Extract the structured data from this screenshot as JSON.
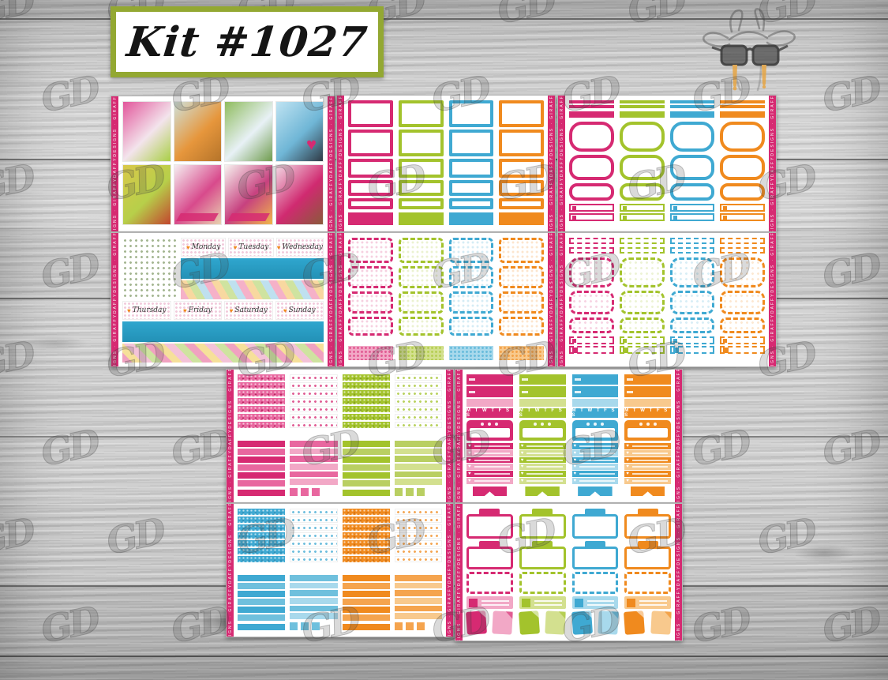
{
  "title": {
    "text": "Kit #1027"
  },
  "brand": {
    "watermark_glyph": "GD",
    "edge_text": "giraffydaffydesigns",
    "logo": "giraffe-with-glasses"
  },
  "palette": {
    "pink": "#D62A72",
    "pinkDark": "#AF1553",
    "pinkMid": "#E8679F",
    "pinkLight": "#F2A8C6",
    "green": "#A3C32C",
    "greenDark": "#7E9A1E",
    "greenLight": "#D3E08F",
    "blue": "#3FA9D2",
    "blueDark": "#2B89B0",
    "blueLight": "#A8D9EC",
    "orange": "#F08A1E",
    "orangeDark": "#C96A10",
    "orangeLight": "#F8C98D",
    "cyan": "#2FA6CE",
    "titleBorder": "#93A832",
    "woodSeam": "#2E2E2E",
    "drip": "#E8A33C"
  },
  "weekdays_row1": [
    "Monday",
    "Tuesday",
    "Wednesday"
  ],
  "weekdays_row2": [
    "Thursday",
    "Friday",
    "Saturday",
    "Sunday"
  ],
  "habit_letters": "M T W T F S S",
  "collage": {
    "tiles": [
      {
        "name": "art-tile-shopping-cosmetics",
        "colors": [
          "#e2569b",
          "#f3e4ec",
          "#a9cf45"
        ]
      },
      {
        "name": "art-tile-orange-sweater",
        "colors": [
          "#cfe0d8",
          "#e6963c",
          "#b5742a"
        ]
      },
      {
        "name": "art-tile-champagne-toast",
        "colors": [
          "#8fbc5e",
          "#e8f1f6",
          "#6f9c4e"
        ]
      },
      {
        "name": "art-tile-phone-heart",
        "colors": [
          "#bfe3f2",
          "#6fb6d6",
          "#2f3a45"
        ]
      },
      {
        "name": "art-tile-pasta-dish",
        "colors": [
          "#d9c84a",
          "#b7cf4a",
          "#c2452e"
        ]
      },
      {
        "name": "art-tile-boutique-interior",
        "colors": [
          "#f5eef0",
          "#d84a8c",
          "#e8d3b0"
        ]
      },
      {
        "name": "art-tile-store-counter",
        "colors": [
          "#f7f2ef",
          "#c7417f",
          "#f0b84a"
        ]
      },
      {
        "name": "art-tile-makeup-palette",
        "colors": [
          "#f2d9e4",
          "#d02a70",
          "#8a5a3a"
        ]
      }
    ],
    "foliage_square_colors": [
      "#9ec45e",
      "#6f9c3e",
      "#d6e6ae"
    ]
  },
  "sheet_labels": [
    "photo-collage-sheet",
    "half-box-sheet",
    "rounded-box-sheet",
    "weekly-washi-sheet",
    "deco-box-sheet",
    "deco-mini-sheet",
    "pink-green-washi-sheet",
    "habit-column-sheet",
    "blue-orange-washi-sheet",
    "note-box-sheet"
  ]
}
